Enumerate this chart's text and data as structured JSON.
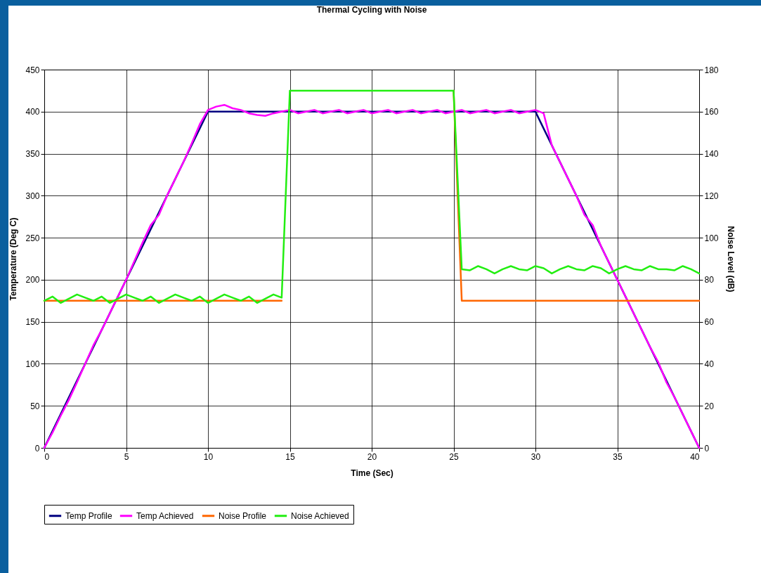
{
  "chart_data": {
    "type": "line",
    "title": "Thermal Cycling with Noise",
    "xlabel": "Time (Sec)",
    "ylabel": "Temperature (Deg C)",
    "y2label": "Noise Level (dB)",
    "xlim": [
      0,
      40
    ],
    "xticks": [
      0,
      5,
      10,
      15,
      20,
      25,
      30,
      35,
      40
    ],
    "ylim": [
      0,
      450
    ],
    "yticks": [
      0,
      50,
      100,
      150,
      200,
      250,
      300,
      350,
      400,
      450
    ],
    "y2lim": [
      0,
      180
    ],
    "y2ticks": [
      0,
      20,
      40,
      60,
      80,
      100,
      120,
      140,
      160,
      180
    ],
    "grid": true,
    "legend": "bottom",
    "marker": "none",
    "line_style": "solid",
    "series": [
      {
        "name": "Temp Profile",
        "color": "#000080",
        "x": [
          0,
          10,
          30,
          40
        ],
        "values": [
          0,
          400,
          400,
          0
        ]
      },
      {
        "name": "Temp Achieved",
        "color": "#ff00ff",
        "x": [
          0,
          0.5,
          1,
          1.5,
          2,
          2.5,
          3,
          3.5,
          4,
          4.5,
          5,
          5.5,
          6,
          6.5,
          7,
          7.5,
          8,
          8.5,
          9,
          9.5,
          10,
          10.5,
          11,
          11.5,
          12,
          12.5,
          13,
          13.5,
          14,
          14.5,
          15,
          15.5,
          16,
          16.5,
          17,
          17.5,
          18,
          18.5,
          19,
          19.5,
          20,
          20.5,
          21,
          21.5,
          22,
          22.5,
          23,
          23.5,
          24,
          24.5,
          25,
          25.5,
          26,
          26.5,
          27,
          27.5,
          28,
          28.5,
          29,
          29.5,
          30,
          30.5,
          31,
          31.5,
          32,
          32.5,
          33,
          33.5,
          34,
          34.5,
          35,
          35.5,
          36,
          36.5,
          37,
          37.5,
          38,
          38.5,
          39,
          39.5,
          40
        ],
        "values": [
          0,
          18,
          38,
          57,
          78,
          100,
          122,
          140,
          160,
          180,
          200,
          222,
          244,
          265,
          277,
          300,
          320,
          340,
          362,
          385,
          402,
          406,
          408,
          404,
          402,
          398,
          396,
          395,
          398,
          400,
          402,
          398,
          400,
          402,
          398,
          400,
          402,
          398,
          400,
          402,
          398,
          400,
          402,
          398,
          400,
          402,
          398,
          400,
          402,
          398,
          400,
          402,
          398,
          400,
          402,
          398,
          400,
          402,
          398,
          400,
          402,
          398,
          360,
          340,
          320,
          300,
          277,
          265,
          240,
          220,
          200,
          180,
          160,
          140,
          120,
          102,
          78,
          60,
          40,
          20,
          0
        ]
      },
      {
        "name": "Noise Profile",
        "color": "#ff6600",
        "axis": "y2",
        "x": [
          0,
          14.5,
          15,
          25,
          25.5,
          40
        ],
        "values": [
          70,
          70,
          null,
          170,
          70,
          70
        ]
      },
      {
        "name": "Noise Achieved",
        "color": "#22ee11",
        "axis": "y2",
        "x": [
          0,
          0.5,
          1,
          1.5,
          2,
          2.5,
          3,
          3.5,
          4,
          4.5,
          5,
          5.5,
          6,
          6.5,
          7,
          7.5,
          8,
          8.5,
          9,
          9.5,
          10,
          10.5,
          11,
          11.5,
          12,
          12.5,
          13,
          13.5,
          14,
          14.5,
          15,
          25,
          25.5,
          26,
          26.5,
          27,
          27.5,
          28,
          28.5,
          29,
          29.5,
          30,
          30.5,
          31,
          31.5,
          32,
          32.5,
          33,
          33.5,
          34,
          34.5,
          35,
          35.5,
          36,
          36.5,
          37,
          37.5,
          38,
          38.5,
          39,
          39.5,
          40
        ],
        "values": [
          70,
          72,
          69,
          71,
          73,
          71.5,
          70,
          72,
          69,
          71,
          73,
          71.5,
          70,
          72,
          69,
          71,
          73,
          71.5,
          70,
          72,
          69,
          71,
          73,
          71.5,
          70,
          72,
          69,
          71,
          73,
          71.5,
          170,
          170,
          85,
          84.5,
          86.5,
          85,
          83,
          85,
          86.5,
          85,
          84.5,
          86.5,
          85.5,
          83,
          85,
          86.5,
          85,
          84.5,
          86.5,
          85.5,
          83,
          85,
          86.5,
          85,
          84.5,
          86.5,
          85,
          85,
          84.5,
          86.5,
          85,
          83
        ]
      }
    ]
  }
}
